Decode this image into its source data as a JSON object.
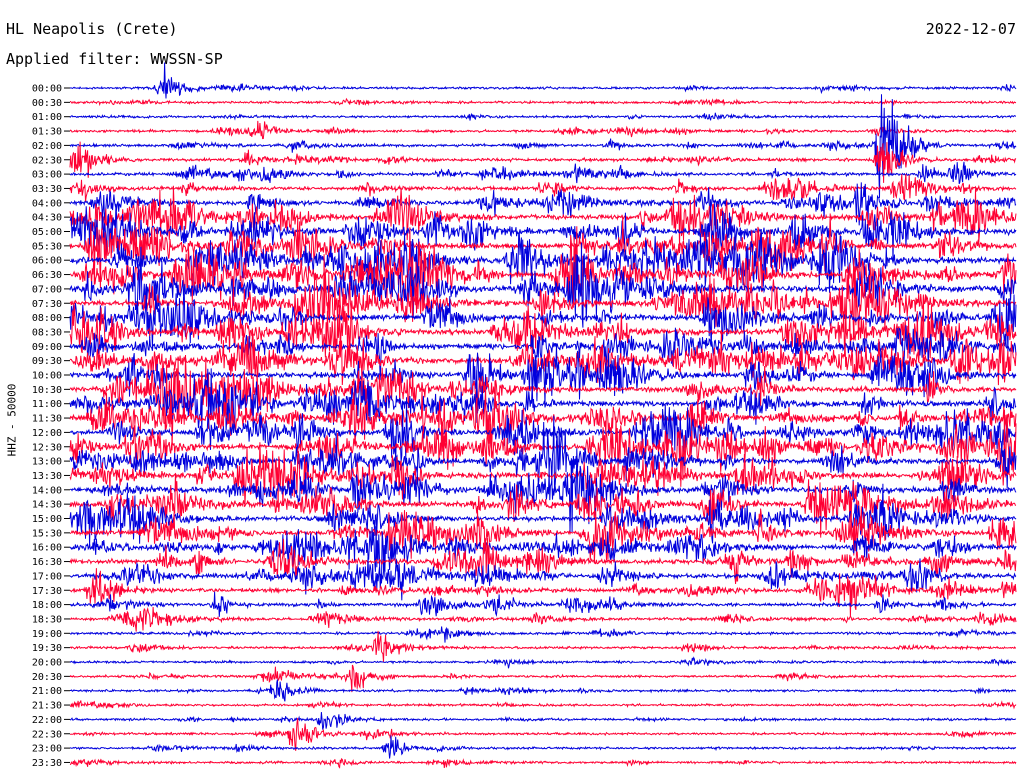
{
  "header": {
    "station": "HL Neapolis (Crete)",
    "date": "2022-12-07",
    "filter": "Applied filter: WWSSN-SP",
    "channel": "HHZ - 50000"
  },
  "chart_data": {
    "type": "line",
    "subtype": "helicorder",
    "title": "HL Neapolis (Crete)",
    "ylabel": "HHZ - 50000",
    "row_labels": [
      "00:00",
      "00:30",
      "01:00",
      "01:30",
      "02:00",
      "02:30",
      "03:00",
      "03:30",
      "04:00",
      "04:30",
      "05:00",
      "05:30",
      "06:00",
      "06:30",
      "07:00",
      "07:30",
      "08:00",
      "08:30",
      "09:00",
      "09:30",
      "10:00",
      "10:30",
      "11:00",
      "11:30",
      "12:00",
      "12:30",
      "13:00",
      "13:30",
      "14:00",
      "14:30",
      "15:00",
      "15:30",
      "16:00",
      "16:30",
      "17:00",
      "17:30",
      "18:00",
      "18:30",
      "19:00",
      "19:30",
      "20:00",
      "20:30",
      "21:00",
      "21:30",
      "22:00",
      "22:30",
      "23:00",
      "23:30"
    ],
    "series_colors": [
      "#0000dd",
      "#ff0033"
    ],
    "activity_level": [
      0.15,
      0.15,
      0.15,
      0.2,
      0.25,
      0.3,
      0.35,
      0.45,
      0.6,
      0.75,
      0.85,
      0.9,
      0.95,
      0.95,
      0.95,
      0.95,
      0.9,
      0.9,
      0.9,
      0.9,
      0.85,
      0.85,
      0.85,
      0.85,
      0.85,
      0.85,
      0.8,
      0.8,
      0.8,
      0.8,
      0.75,
      0.75,
      0.7,
      0.65,
      0.6,
      0.5,
      0.4,
      0.3,
      0.2,
      0.2,
      0.15,
      0.15,
      0.15,
      0.15,
      0.15,
      0.15,
      0.15,
      0.15
    ],
    "events": [
      {
        "row": 0,
        "time_fraction": 0.1,
        "amplitude": 2.5
      },
      {
        "row": 3,
        "time_fraction": 0.2,
        "amplitude": 1.5
      },
      {
        "row": 5,
        "time_fraction": 0.01,
        "amplitude": 2.5
      },
      {
        "row": 4,
        "time_fraction": 0.86,
        "amplitude": 12
      },
      {
        "row": 5,
        "time_fraction": 0.86,
        "amplitude": 4
      },
      {
        "row": 6,
        "time_fraction": 0.21,
        "amplitude": 1.5
      },
      {
        "row": 10,
        "time_fraction": 0.32,
        "amplitude": 1.5
      },
      {
        "row": 19,
        "time_fraction": 0.28,
        "amplitude": 2
      },
      {
        "row": 22,
        "time_fraction": 0.25,
        "amplitude": 2
      },
      {
        "row": 34,
        "time_fraction": 0.35,
        "amplitude": 2
      },
      {
        "row": 39,
        "time_fraction": 0.33,
        "amplitude": 2
      },
      {
        "row": 41,
        "time_fraction": 0.3,
        "amplitude": 2
      },
      {
        "row": 42,
        "time_fraction": 0.22,
        "amplitude": 1.5
      },
      {
        "row": 44,
        "time_fraction": 0.27,
        "amplitude": 2
      },
      {
        "row": 45,
        "time_fraction": 0.24,
        "amplitude": 3
      },
      {
        "row": 46,
        "time_fraction": 0.34,
        "amplitude": 1.5
      }
    ]
  }
}
